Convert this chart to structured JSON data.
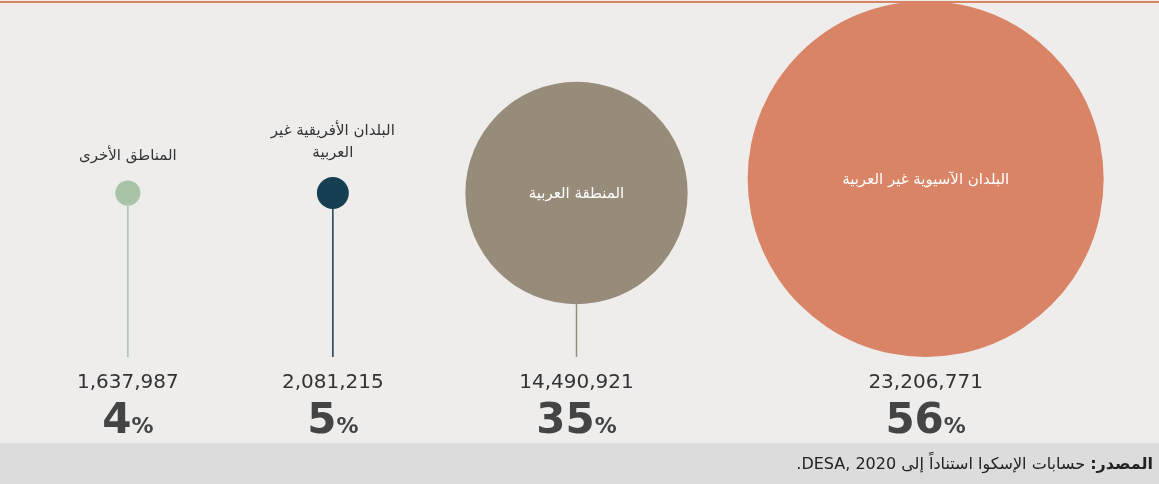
{
  "chart_data": {
    "type": "other",
    "categories": [
      "المناطق الأخرى",
      "البلدان الأفريقية غير العربية",
      "المنطقة العربية",
      "البلدان الآسيوية غير العربية"
    ],
    "values": [
      1637987,
      2081215,
      14490921,
      23206771
    ],
    "value_labels": [
      "1,637,987",
      "2,081,215",
      "14,490,921",
      "23,206,771"
    ],
    "colors": [
      "#a8c3a6",
      "#163f52",
      "#978c7a",
      "#d98466"
    ],
    "annotations": [
      {
        "text": "4%",
        "x": "المناطق الأخرى"
      },
      {
        "text": "5%",
        "x": "البلدان الأفريقية غير العربية"
      },
      {
        "text": "35%",
        "x": "المنطقة العربية"
      },
      {
        "text": "56%",
        "x": "البلدان الآسيوية غير العربية"
      },
      "المصدر: حسابات الإسكوا استناداً إلى DESA, 2020."
    ]
  }
}
